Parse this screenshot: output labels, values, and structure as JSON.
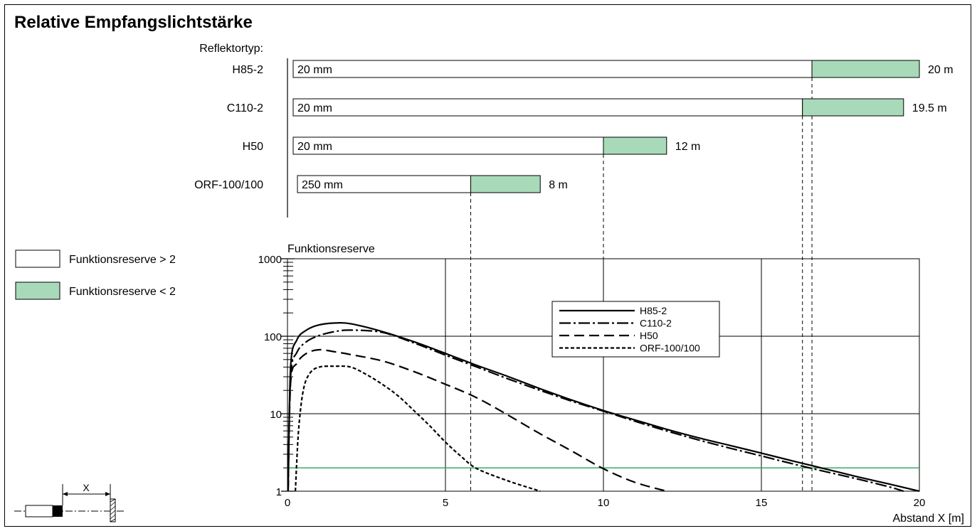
{
  "title": "Relative Empfangslichtstärke",
  "reflector_header": "Reflektortyp:",
  "reflectors": [
    {
      "name": "H85-2",
      "min_label": "20 mm",
      "max_label": "20 m",
      "max_m": 20.0,
      "reserve2_m": 16.6
    },
    {
      "name": "C110-2",
      "min_label": "20 mm",
      "max_label": "19.5 m",
      "max_m": 19.5,
      "reserve2_m": 16.3
    },
    {
      "name": "H50",
      "min_label": "20 mm",
      "max_label": "12 m",
      "max_m": 12.0,
      "reserve2_m": 10.0
    },
    {
      "name": "ORF-100/100",
      "min_label": "250 mm",
      "max_label": "8 m",
      "max_m": 8.0,
      "reserve2_m": 5.8
    }
  ],
  "legend_boxes": [
    {
      "label": "Funktionsreserve > 2",
      "color": "#ffffff"
    },
    {
      "label": "Funktionsreserve < 2",
      "color": "#a8dab9"
    }
  ],
  "colors": {
    "reserve_low": "#a8dab9",
    "threshold_line": "#2aa35a",
    "ink": "#000000"
  },
  "sensor_diagram": {
    "label": "X"
  },
  "chart_data": {
    "type": "line",
    "title": "",
    "ylabel": "Funktionsreserve",
    "xlabel": "Abstand X [m]",
    "xlim": [
      0,
      20
    ],
    "ylim": [
      1,
      1000
    ],
    "yscale": "log",
    "x_ticks": [
      0,
      5,
      10,
      15,
      20
    ],
    "x_tick_labels": [
      "0",
      "5",
      "10",
      "15",
      "20"
    ],
    "y_ticks": [
      1,
      10,
      100,
      1000
    ],
    "y_tick_labels": [
      "1",
      "10",
      "100",
      "1000"
    ],
    "grid": true,
    "legend_position": "upper-center",
    "threshold": 2,
    "series": [
      {
        "name": "H85-2",
        "dash": "solid",
        "x": [
          0.02,
          0.1,
          0.3,
          0.6,
          1.0,
          1.5,
          2.0,
          3.0,
          4.0,
          5.0,
          6.0,
          7.0,
          8.0,
          9.0,
          10.0,
          11.0,
          12.0,
          13.0,
          14.0,
          15.0,
          16.0,
          17.0,
          18.0,
          19.0,
          20.0
        ],
        "y": [
          1,
          40,
          90,
          120,
          140,
          148,
          145,
          115,
          85,
          60,
          42,
          30,
          21,
          15,
          11,
          8.3,
          6.3,
          4.9,
          3.9,
          3.1,
          2.45,
          1.95,
          1.55,
          1.25,
          1.0
        ]
      },
      {
        "name": "C110-2",
        "dash": "dashdot",
        "x": [
          0.02,
          0.1,
          0.3,
          0.6,
          1.0,
          1.5,
          2.0,
          3.0,
          4.0,
          5.0,
          6.0,
          7.0,
          8.0,
          9.0,
          10.0,
          11.0,
          12.0,
          13.0,
          14.0,
          15.0,
          16.0,
          17.0,
          18.0,
          19.0,
          19.5
        ],
        "y": [
          1,
          30,
          62,
          85,
          102,
          115,
          120,
          112,
          82,
          57,
          40,
          28,
          20,
          14.5,
          10.8,
          8.0,
          6.0,
          4.6,
          3.6,
          2.85,
          2.25,
          1.8,
          1.45,
          1.15,
          1.0
        ]
      },
      {
        "name": "H50",
        "dash": "dashed",
        "x": [
          0.02,
          0.1,
          0.3,
          0.6,
          1.0,
          1.5,
          2.0,
          3.0,
          4.0,
          5.0,
          6.0,
          7.0,
          8.0,
          9.0,
          10.0,
          11.0,
          12.0
        ],
        "y": [
          1,
          25,
          45,
          60,
          67,
          63,
          58,
          48,
          35,
          24,
          16,
          9.5,
          5.5,
          3.3,
          1.95,
          1.3,
          1.0
        ]
      },
      {
        "name": "ORF-100/100",
        "dash": "dotted",
        "x": [
          0.25,
          0.35,
          0.5,
          0.7,
          1.0,
          1.5,
          2.0,
          2.5,
          3.0,
          3.5,
          4.0,
          4.5,
          5.0,
          5.5,
          6.0,
          7.0,
          8.0
        ],
        "y": [
          1,
          6,
          20,
          33,
          40,
          41,
          40,
          32,
          24,
          17,
          11,
          7,
          4.3,
          2.8,
          1.95,
          1.35,
          1.0
        ]
      }
    ]
  }
}
